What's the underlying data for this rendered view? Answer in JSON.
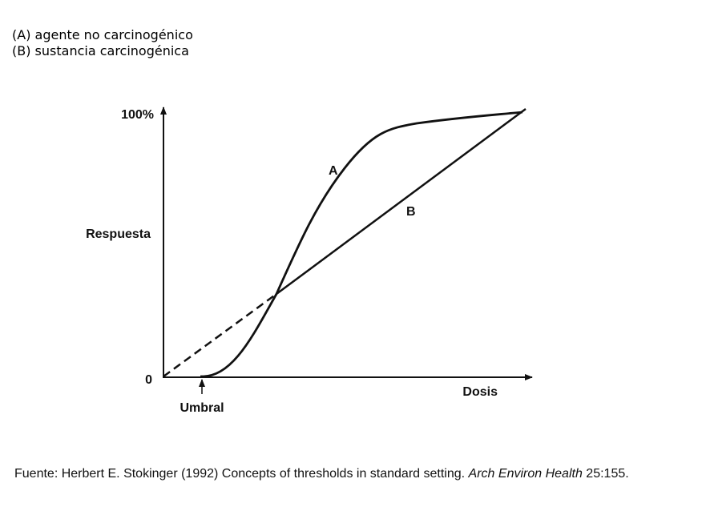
{
  "legend": {
    "items": [
      "(A) agente no carcinogénico",
      "(B) sustancia carcinogénica"
    ]
  },
  "diagram": {
    "y_top_label": "100%",
    "y_bottom_label": "0",
    "y_axis_label": "Respuesta",
    "x_axis_label": "Dosis",
    "threshold_label": "Umbral",
    "curve_a_label": "A",
    "curve_b_label": "B"
  },
  "source": {
    "prefix": "Fuente: Herbert E. Stokinger (1992) Concepts of thresholds in standard setting.",
    "journal": "Arch Environ Health",
    "suffix": "25:155."
  }
}
